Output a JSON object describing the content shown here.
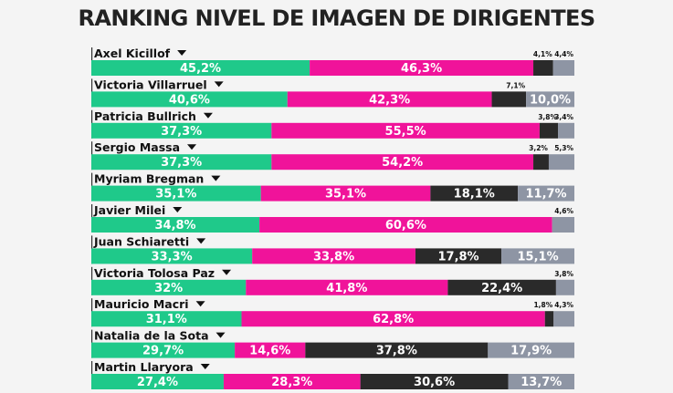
{
  "title": "RANKING NIVEL DE IMAGEN DE DIRIGENTES",
  "colors": {
    "green": "#1fc98a",
    "pink": "#f0139a",
    "dark": "#2a2a2a",
    "gray": "#8e95a4",
    "arrow": "#111111"
  },
  "chart_data": {
    "type": "bar",
    "stacked": true,
    "orientation": "horizontal",
    "title": "RANKING NIVEL DE IMAGEN DE DIRIGENTES",
    "segments": [
      "green",
      "pink",
      "dark",
      "gray"
    ],
    "rows": [
      {
        "name": "Axel Kicillof",
        "values": [
          45.2,
          46.3,
          4.1,
          4.4
        ],
        "labels": [
          "45,2%",
          "46,3%",
          "4,1%",
          "4,4%"
        ]
      },
      {
        "name": "Victoria Villarruel",
        "values": [
          40.6,
          42.3,
          7.1,
          10.0
        ],
        "labels": [
          "40,6%",
          "42,3%",
          "7,1%",
          "10,0%"
        ]
      },
      {
        "name": "Patricia Bullrich",
        "values": [
          37.3,
          55.5,
          3.8,
          3.4
        ],
        "labels": [
          "37,3%",
          "55,5%",
          "3,8%",
          "3,4%"
        ]
      },
      {
        "name": "Sergio Massa",
        "values": [
          37.3,
          54.2,
          3.2,
          5.3
        ],
        "labels": [
          "37,3%",
          "54,2%",
          "3,2%",
          "5,3%"
        ]
      },
      {
        "name": "Myriam Bregman",
        "values": [
          35.1,
          35.1,
          18.1,
          11.7
        ],
        "labels": [
          "35,1%",
          "35,1%",
          "18,1%",
          "11,7%"
        ]
      },
      {
        "name": "Javier Milei",
        "values": [
          34.8,
          60.6,
          0,
          4.6
        ],
        "labels": [
          "34,8%",
          "60,6%",
          "",
          "4,6%"
        ]
      },
      {
        "name": "Juan Schiaretti",
        "values": [
          33.3,
          33.8,
          17.8,
          15.1
        ],
        "labels": [
          "33,3%",
          "33,8%",
          "17,8%",
          "15,1%"
        ]
      },
      {
        "name": "Victoria Tolosa Paz",
        "values": [
          32,
          41.8,
          22.4,
          3.8
        ],
        "labels": [
          "32%",
          "41,8%",
          "22,4%",
          "3,8%"
        ]
      },
      {
        "name": "Mauricio Macri",
        "values": [
          31.1,
          62.8,
          1.8,
          4.3
        ],
        "labels": [
          "31,1%",
          "62,8%",
          "1,8%",
          "4,3%"
        ]
      },
      {
        "name": "Natalia de la Sota",
        "values": [
          29.7,
          14.6,
          37.8,
          17.9
        ],
        "labels": [
          "29,7%",
          "14,6%",
          "37,8%",
          "17,9%"
        ]
      },
      {
        "name": "Martin Llaryora",
        "values": [
          27.4,
          28.3,
          30.6,
          13.7
        ],
        "labels": [
          "27,4%",
          "28,3%",
          "30,6%",
          "13,7%"
        ]
      }
    ]
  }
}
